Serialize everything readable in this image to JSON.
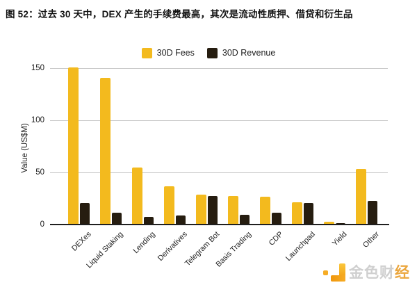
{
  "figure": {
    "title": "图 52：过去 30 天中，DEX 产生的手续费最高，其次是流动性质押、借贷和衍生品"
  },
  "chart_data": {
    "type": "bar",
    "categories": [
      "DEXes",
      "Liquid Staking",
      "Lending",
      "Derivatives",
      "Telegram Bot",
      "Basis Trading",
      "CDP",
      "Launchpad",
      "Yield",
      "Other"
    ],
    "series": [
      {
        "name": "30D Fees",
        "color": "#F3BA1E",
        "values": [
          151,
          141,
          55,
          37,
          29,
          28,
          27,
          22,
          3,
          54
        ]
      },
      {
        "name": "30D Revenue",
        "color": "#261D10",
        "values": [
          21,
          12,
          8,
          9,
          28,
          10,
          12,
          21,
          2,
          23
        ]
      }
    ],
    "xlabel": "",
    "ylabel": "Value (US$M)",
    "yticks": [
      0,
      50,
      100,
      150
    ],
    "ylim": [
      0,
      155
    ],
    "grid": true,
    "legend_position": "top-center",
    "gridline_color": "#C9C9C9",
    "axis_line_color": "#1F1F1F"
  },
  "watermark": {
    "brand": "金色财经",
    "gray_color": "#CFCFCF",
    "accent_color": "#EBA63D"
  }
}
